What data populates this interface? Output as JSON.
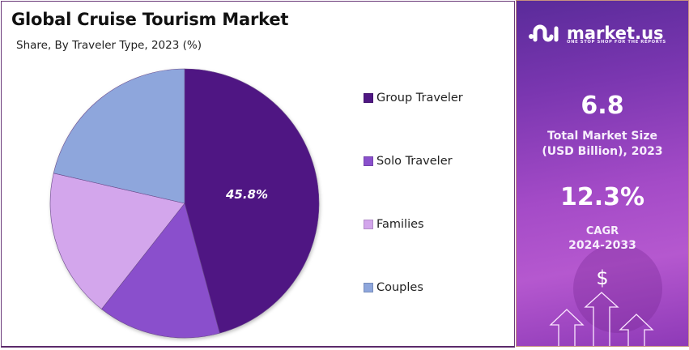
{
  "header": {
    "title": "Global Cruise Tourism Market",
    "subtitle": "Share, By Traveler Type, 2023 (%)"
  },
  "chart_data": {
    "type": "pie",
    "title": "Global Cruise Tourism Market",
    "subtitle": "Share, By Traveler Type, 2023 (%)",
    "categories": [
      "Group Traveler",
      "Solo Traveler",
      "Families",
      "Couples"
    ],
    "values": [
      45.8,
      14.8,
      18.0,
      21.4
    ],
    "colors": [
      "#4f1783",
      "#8a50cc",
      "#d3a6ec",
      "#8ea6dc"
    ],
    "data_labels": [
      {
        "category": "Group Traveler",
        "text": "45.8%"
      }
    ],
    "start_angle_deg": 0,
    "direction": "clockwise",
    "legend_position": "right"
  },
  "legend": {
    "items": [
      {
        "label": "Group Traveler",
        "color": "#4f1783"
      },
      {
        "label": "Solo Traveler",
        "color": "#8a50cc"
      },
      {
        "label": "Families",
        "color": "#d3a6ec"
      },
      {
        "label": "Couples",
        "color": "#8ea6dc"
      }
    ]
  },
  "sidebar": {
    "brand": "market.us",
    "tagline": "ONE STOP SHOP FOR THE REPORTS",
    "market_size_value": "6.8",
    "market_size_label_1": "Total Market Size",
    "market_size_label_2": "(USD Billion), 2023",
    "cagr_value": "12.3%",
    "cagr_label_1": "CAGR",
    "cagr_label_2": "2024-2033",
    "dollar_icon_text": "$"
  }
}
